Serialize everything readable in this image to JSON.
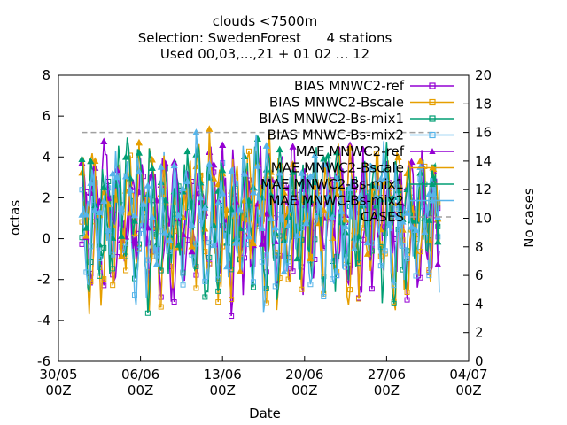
{
  "chart_data": {
    "type": "line",
    "title_lines": [
      "clouds <7500m",
      "Selection: SwedenForest      4 stations",
      "Used 00,03,...,21 + 01 02 ... 12"
    ],
    "xlabel": "Date",
    "ylabel": "octas",
    "y2label": "No cases",
    "x_ticks": [
      {
        "date": "30/05",
        "hour": "00Z"
      },
      {
        "date": "06/06",
        "hour": "00Z"
      },
      {
        "date": "13/06",
        "hour": "00Z"
      },
      {
        "date": "20/06",
        "hour": "00Z"
      },
      {
        "date": "27/06",
        "hour": "00Z"
      },
      {
        "date": "04/07",
        "hour": "00Z"
      }
    ],
    "x_range_days": [
      0,
      35
    ],
    "x_data_range_days": [
      2,
      32.5
    ],
    "ylim": [
      -6,
      8
    ],
    "y_ticks": [
      -6,
      -4,
      -2,
      0,
      2,
      4,
      6,
      8
    ],
    "y2lim": [
      0,
      20
    ],
    "y2_ticks": [
      0,
      2,
      4,
      6,
      8,
      10,
      12,
      14,
      16,
      18,
      20
    ],
    "cases_value": 16,
    "series": [
      {
        "name": "BIAS MNWC2-ref",
        "color": "#9400d3",
        "marker": "square",
        "amp": 2.2,
        "mean": 0.3
      },
      {
        "name": "BIAS MNWC2-Bscale",
        "color": "#e69f00",
        "marker": "square",
        "amp": 2.3,
        "mean": 0.2
      },
      {
        "name": "BIAS MNWC2-Bs-mix1",
        "color": "#009e73",
        "marker": "square",
        "amp": 2.2,
        "mean": 0.4
      },
      {
        "name": "BIAS MNWC-Bs-mix2",
        "color": "#56b4e9",
        "marker": "square",
        "amp": 2.1,
        "mean": 0.3
      },
      {
        "name": "MAE MNWC2-ref",
        "color": "#9400d3",
        "marker": "triangle",
        "amp": 1.6,
        "mean": 1.8
      },
      {
        "name": "MAE MNWC2-Bscale",
        "color": "#e69f00",
        "marker": "triangle",
        "amp": 1.6,
        "mean": 1.8
      },
      {
        "name": "MAE MNWC2-Bs-mix1",
        "color": "#009e73",
        "marker": "triangle",
        "amp": 1.6,
        "mean": 1.9
      },
      {
        "name": "MAE MNWC-Bs-mix2",
        "color": "#56b4e9",
        "marker": "triangle",
        "amp": 1.5,
        "mean": 1.8
      },
      {
        "name": "CASES",
        "color": "#a0a0a0",
        "marker": "none"
      }
    ]
  }
}
